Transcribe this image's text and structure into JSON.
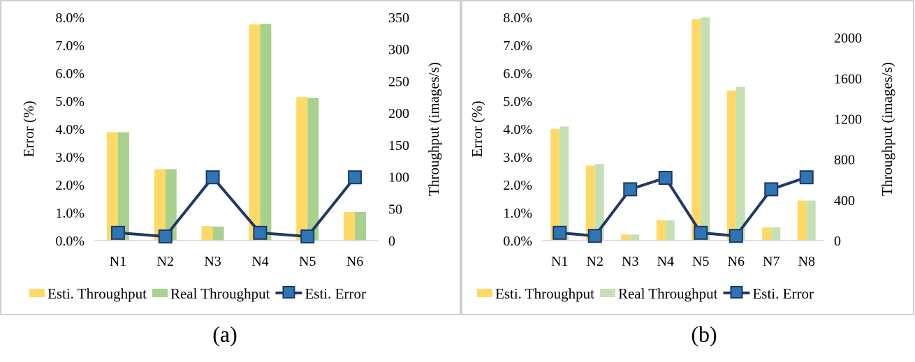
{
  "chart_data": [
    {
      "type": "bar",
      "panel_label": "(a)",
      "categories": [
        "N1",
        "N2",
        "N3",
        "N4",
        "N5",
        "N6"
      ],
      "left_axis": {
        "label": "Error (%)",
        "ylim": [
          0,
          8
        ],
        "ticks": [
          "0.0%",
          "1.0%",
          "2.0%",
          "3.0%",
          "4.0%",
          "5.0%",
          "6.0%",
          "7.0%",
          "8.0%"
        ]
      },
      "right_axis": {
        "label": "Throughput (images/s)",
        "ylim": [
          0,
          350
        ],
        "ticks": [
          "0",
          "50",
          "100",
          "150",
          "200",
          "250",
          "300",
          "350"
        ]
      },
      "series": [
        {
          "name": "Esti. Throughput",
          "type": "bar",
          "axis": "right",
          "color": "#FFD966",
          "values": [
            170,
            112,
            23,
            339,
            225,
            45
          ]
        },
        {
          "name": "Real Throughput",
          "type": "bar",
          "axis": "right",
          "color": "#A9D18E",
          "values": [
            170,
            112,
            22,
            340,
            224,
            45
          ]
        },
        {
          "name": "Esti. Error",
          "type": "line",
          "axis": "left",
          "color": "#203864",
          "marker_color": "#2E75B6",
          "values": [
            0.28,
            0.15,
            2.27,
            0.28,
            0.15,
            2.27
          ]
        }
      ],
      "legend": "bottom",
      "grid": false
    },
    {
      "type": "bar",
      "panel_label": "(b)",
      "categories": [
        "N1",
        "N2",
        "N3",
        "N4",
        "N5",
        "N6",
        "N7",
        "N8"
      ],
      "left_axis": {
        "label": "Error (%)",
        "ylim": [
          0,
          8
        ],
        "ticks": [
          "0.0%",
          "1.0%",
          "2.0%",
          "3.0%",
          "4.0%",
          "5.0%",
          "6.0%",
          "7.0%",
          "8.0%"
        ]
      },
      "right_axis": {
        "label": "Throughput (images/s)",
        "ylim": [
          0,
          2200
        ],
        "ticks": [
          "0",
          "400",
          "800",
          "1200",
          "1600",
          "2000"
        ]
      },
      "series": [
        {
          "name": "Esti. Throughput",
          "type": "bar",
          "axis": "right",
          "color": "#FFD966",
          "values": [
            1100,
            740,
            60,
            200,
            2185,
            1480,
            130,
            395
          ]
        },
        {
          "name": "Real Throughput",
          "type": "bar",
          "axis": "right",
          "color": "#C5E0B4",
          "values": [
            1125,
            755,
            60,
            200,
            2200,
            1515,
            130,
            395
          ]
        },
        {
          "name": "Esti. Error",
          "type": "line",
          "axis": "left",
          "color": "#203864",
          "marker_color": "#2E75B6",
          "values": [
            0.28,
            0.17,
            1.84,
            2.25,
            0.28,
            0.17,
            1.84,
            2.27
          ]
        }
      ],
      "legend": "bottom",
      "grid": false
    }
  ]
}
